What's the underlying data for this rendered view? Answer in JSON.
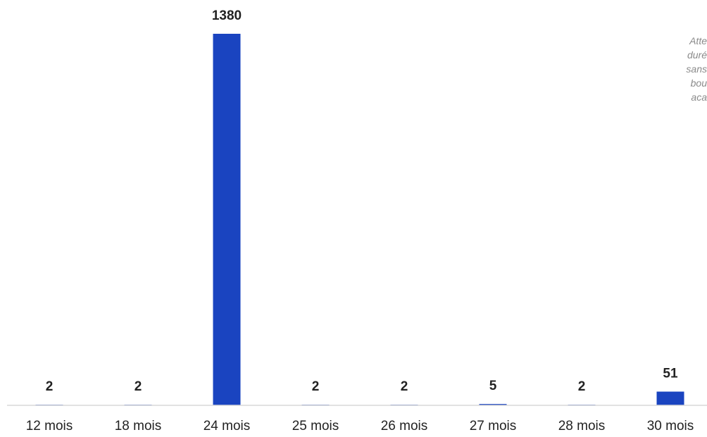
{
  "colors": {
    "bar": "#1a44c0",
    "axis": "#d9d9d9",
    "label": "#222222",
    "annotation": "#8a8a8a"
  },
  "annotation": {
    "lines": [
      "Atte",
      "duré",
      "sans",
      "bou",
      "aca"
    ]
  },
  "chart_data": {
    "type": "bar",
    "categories": [
      "12 mois",
      "18 mois",
      "24 mois",
      "25 mois",
      "26 mois",
      "27 mois",
      "28 mois",
      "30 mois"
    ],
    "values": [
      2,
      2,
      1380,
      2,
      2,
      5,
      2,
      51
    ],
    "data_labels": [
      "2",
      "2",
      "1380",
      "2",
      "2",
      "5",
      "2",
      "51"
    ],
    "title": "",
    "xlabel": "",
    "ylabel": "",
    "ylim": [
      0,
      1380
    ],
    "grid": false,
    "legend": "none"
  }
}
